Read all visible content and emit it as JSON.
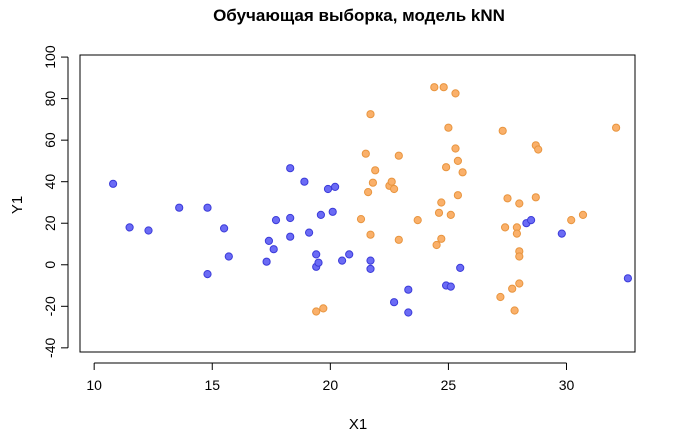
{
  "chart_data": {
    "type": "scatter",
    "title": "Обучающая выборка, модель kNN",
    "xlabel": "X1",
    "ylabel": "Y1",
    "xlim": [
      9.4,
      32.9
    ],
    "ylim": [
      -42,
      101
    ],
    "x_ticks": [
      10,
      15,
      20,
      25,
      30
    ],
    "y_ticks": [
      -40,
      -20,
      0,
      20,
      40,
      60,
      80,
      100
    ],
    "grid": false,
    "legend": "none",
    "colors": {
      "class_blue": {
        "fill": "#6b6bf5",
        "stroke": "#3b3bd9"
      },
      "class_orange": {
        "fill": "#fab06a",
        "stroke": "#e8953f"
      }
    },
    "series": [
      {
        "color_key": "class_blue",
        "points": [
          [
            10.8,
            39
          ],
          [
            11.5,
            18
          ],
          [
            12.3,
            16.5
          ],
          [
            13.6,
            27.5
          ],
          [
            14.8,
            27.5
          ],
          [
            14.8,
            -4.5
          ],
          [
            15.5,
            17.5
          ],
          [
            15.7,
            4
          ],
          [
            17.3,
            1.5
          ],
          [
            17.4,
            11.5
          ],
          [
            17.6,
            7.5
          ],
          [
            17.7,
            21.5
          ],
          [
            18.3,
            22.5
          ],
          [
            18.3,
            13.5
          ],
          [
            18.3,
            46.5
          ],
          [
            18.9,
            40
          ],
          [
            19.1,
            15.5
          ],
          [
            19.4,
            5
          ],
          [
            19.4,
            -1
          ],
          [
            19.5,
            1
          ],
          [
            19.6,
            24
          ],
          [
            19.9,
            36.5
          ],
          [
            20.1,
            25.5
          ],
          [
            20.2,
            37.5
          ],
          [
            20.5,
            2
          ],
          [
            20.8,
            5
          ],
          [
            21.7,
            2
          ],
          [
            21.7,
            -2
          ],
          [
            22.7,
            -18
          ],
          [
            23.3,
            -12
          ],
          [
            23.3,
            -23
          ],
          [
            24.9,
            -10
          ],
          [
            25.1,
            -10.5
          ],
          [
            25.5,
            -1.5
          ],
          [
            28.3,
            20
          ],
          [
            28.5,
            21.5
          ],
          [
            29.8,
            15
          ],
          [
            32.6,
            -6.5
          ]
        ]
      },
      {
        "color_key": "class_orange",
        "points": [
          [
            19.4,
            -22.5
          ],
          [
            19.7,
            -21
          ],
          [
            21.3,
            22
          ],
          [
            21.5,
            53.5
          ],
          [
            21.6,
            35
          ],
          [
            21.7,
            72.5
          ],
          [
            21.7,
            14.5
          ],
          [
            21.8,
            39.5
          ],
          [
            21.9,
            45.5
          ],
          [
            22.5,
            38
          ],
          [
            22.6,
            40
          ],
          [
            22.7,
            36.5
          ],
          [
            22.9,
            52.5
          ],
          [
            22.9,
            12
          ],
          [
            23.7,
            21.5
          ],
          [
            24.4,
            85.5
          ],
          [
            24.5,
            9.5
          ],
          [
            24.6,
            25
          ],
          [
            24.7,
            12.5
          ],
          [
            24.7,
            30
          ],
          [
            24.8,
            85.5
          ],
          [
            24.9,
            47
          ],
          [
            25.0,
            66
          ],
          [
            25.1,
            24
          ],
          [
            25.3,
            56
          ],
          [
            25.3,
            82.5
          ],
          [
            25.4,
            33.5
          ],
          [
            25.4,
            50
          ],
          [
            25.6,
            44.5
          ],
          [
            27.2,
            -15.5
          ],
          [
            27.3,
            64.5
          ],
          [
            27.4,
            18
          ],
          [
            27.5,
            32
          ],
          [
            27.7,
            -11.5
          ],
          [
            27.8,
            -22
          ],
          [
            27.9,
            18
          ],
          [
            27.9,
            15
          ],
          [
            28.0,
            29.5
          ],
          [
            28.0,
            -9
          ],
          [
            28.0,
            6.5
          ],
          [
            28.0,
            4
          ],
          [
            28.7,
            57.5
          ],
          [
            28.7,
            32.5
          ],
          [
            28.8,
            55.5
          ],
          [
            30.2,
            21.5
          ],
          [
            30.7,
            24
          ],
          [
            32.1,
            66
          ]
        ]
      }
    ]
  }
}
